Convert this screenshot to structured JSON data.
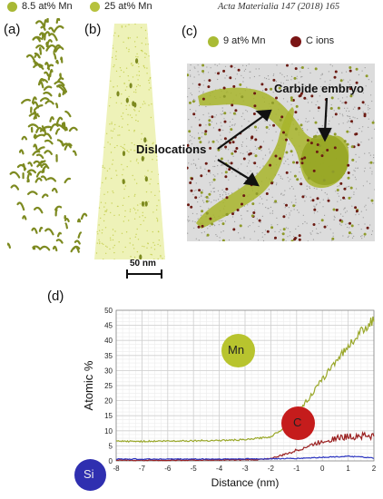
{
  "header": {
    "legend_left": [
      {
        "label": "8.5 at% Mn",
        "color": "#a8b835"
      },
      {
        "label": "25 at% Mn",
        "color": "#b7c23e"
      }
    ],
    "journal": "Acta Materialia 147 (2018) 165"
  },
  "panels": {
    "a": "(a)",
    "b": "(b)",
    "c": "(c)",
    "d": "(d)"
  },
  "panel_c": {
    "legend": [
      {
        "label": "9 at% Mn",
        "color": "#a9bb34"
      },
      {
        "label": "C ions",
        "color": "#7a1414"
      }
    ],
    "annotations": {
      "carbide": "Carbide embryo",
      "dislocations": "Dislocations"
    }
  },
  "scale_bar": {
    "label": "50 nm"
  },
  "chart_data": {
    "type": "line",
    "title": "",
    "xlabel": "Distance (nm)",
    "ylabel": "Atomic %",
    "xlim": [
      -8,
      2
    ],
    "ylim": [
      0,
      50
    ],
    "xticks": [
      -8,
      -7,
      -6,
      -5,
      -4,
      -3,
      -2,
      -1,
      0,
      1,
      2
    ],
    "yticks": [
      0,
      5,
      10,
      15,
      20,
      25,
      30,
      35,
      40,
      45,
      50
    ],
    "grid": true,
    "series": [
      {
        "name": "Mn",
        "color": "#9aa82a",
        "x": [
          -8,
          -7,
          -6,
          -5,
          -4,
          -3,
          -2,
          -1.5,
          -1,
          -0.5,
          0,
          0.5,
          1,
          1.5,
          2
        ],
        "y": [
          6.5,
          6.5,
          6.6,
          6.7,
          6.8,
          7.0,
          8.0,
          11,
          16,
          21,
          27,
          33,
          38,
          43,
          47
        ]
      },
      {
        "name": "C",
        "color": "#9a2020",
        "x": [
          -8,
          -6,
          -4,
          -2.5,
          -2,
          -1.5,
          -1,
          -0.5,
          0,
          0.5,
          1,
          1.5,
          2
        ],
        "y": [
          0.2,
          0.2,
          0.3,
          0.4,
          0.8,
          2.0,
          3.5,
          5.0,
          6.5,
          7.5,
          8.0,
          8.5,
          8.0
        ]
      },
      {
        "name": "Si",
        "color": "#2a33c0",
        "x": [
          -8,
          -6,
          -4,
          -2,
          -1,
          0,
          1,
          1.5,
          2
        ],
        "y": [
          0.6,
          0.6,
          0.6,
          0.7,
          0.8,
          1.2,
          1.5,
          1.3,
          0.9
        ]
      }
    ]
  },
  "element_labels": [
    {
      "label": "Mn",
      "color": "#b8c42e",
      "text_color": "#222"
    },
    {
      "label": "C",
      "color": "#c51c1c",
      "text_color": "#222"
    },
    {
      "label": "Si",
      "color": "#2f2fb0",
      "text_color": "#eee"
    }
  ]
}
